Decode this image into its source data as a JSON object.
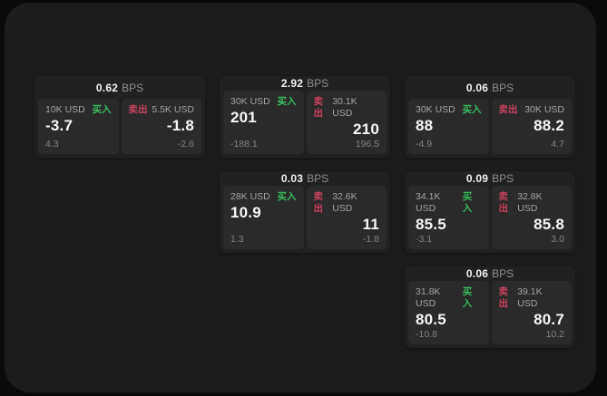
{
  "labels": {
    "bps_unit": "BPS",
    "buy": "买入",
    "sell": "卖出"
  },
  "colors": {
    "buy": "#38bd5e",
    "sell": "#c9425c",
    "surface": "#1c1c1d",
    "card": "#212122",
    "panel": "#2a2a2b"
  },
  "cards": [
    {
      "bps": "0.62",
      "buy": {
        "amount": "10K USD",
        "price": "-3.7",
        "delta": "4.3"
      },
      "sell": {
        "amount": "5.5K USD",
        "price": "-1.8",
        "delta": "-2.6"
      }
    },
    {
      "bps": "2.92",
      "buy": {
        "amount": "30K USD",
        "price": "201",
        "delta": "-188.1"
      },
      "sell": {
        "amount": "30.1K USD",
        "price": "210",
        "delta": "196.5"
      }
    },
    {
      "bps": "0.06",
      "buy": {
        "amount": "30K USD",
        "price": "88",
        "delta": "-4.9"
      },
      "sell": {
        "amount": "30K USD",
        "price": "88.2",
        "delta": "4.7"
      }
    },
    {
      "bps": "0.03",
      "buy": {
        "amount": "28K USD",
        "price": "10.9",
        "delta": "1.3"
      },
      "sell": {
        "amount": "32.6K USD",
        "price": "11",
        "delta": "-1.8"
      }
    },
    {
      "bps": "0.09",
      "buy": {
        "amount": "34.1K USD",
        "price": "85.5",
        "delta": "-3.1"
      },
      "sell": {
        "amount": "32.8K USD",
        "price": "85.8",
        "delta": "3.0"
      }
    },
    {
      "bps": "0.06",
      "buy": {
        "amount": "31.8K USD",
        "price": "80.5",
        "delta": "-10.8"
      },
      "sell": {
        "amount": "39.1K USD",
        "price": "80.7",
        "delta": "10.2"
      }
    }
  ]
}
